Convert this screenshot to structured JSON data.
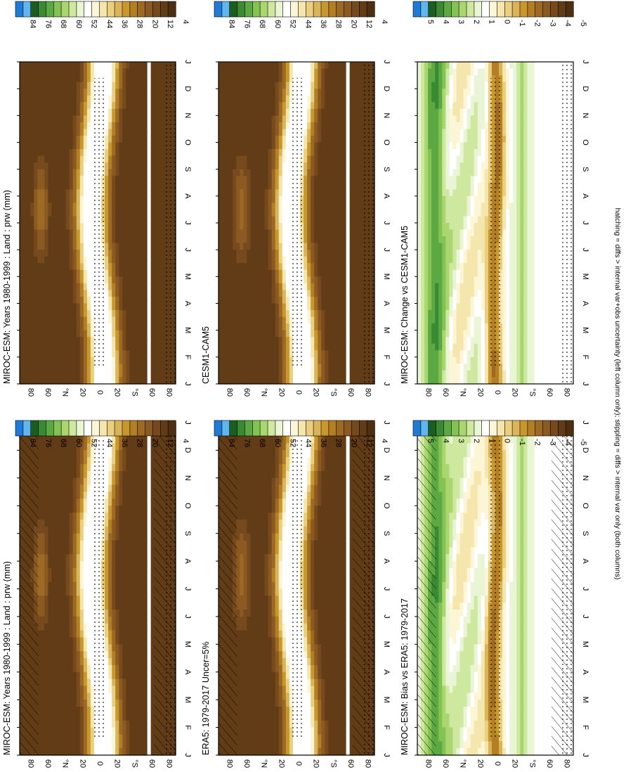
{
  "figure": {
    "footnote": "hatching = diffs > internal var+obs uncertainty (left column only); stippling = diffs > internal var only (both columns)"
  },
  "chart_data": [
    {
      "type": "heatmap",
      "panel": "top-left",
      "title": "MIROC-ESM: Years 1980-1999 : Land : prw (mm)",
      "months": [
        "J",
        "F",
        "M",
        "A",
        "M",
        "J",
        "J",
        "A",
        "S",
        "O",
        "N",
        "D",
        "J"
      ],
      "lat_ticks": [
        "80",
        "60",
        "°N",
        "20",
        "0",
        "20",
        "°S",
        "60",
        "80"
      ],
      "overlay": "hatching+stippling",
      "field": "absolute",
      "peak_lat": 64
    },
    {
      "type": "heatmap",
      "panel": "middle-left",
      "title": "ERA5: 1979-2017 Uncer=5%",
      "months": [
        "J",
        "F",
        "M",
        "A",
        "M",
        "J",
        "J",
        "A",
        "S",
        "O",
        "N",
        "D",
        "J"
      ],
      "lat_ticks": [
        "80",
        "60",
        "°N",
        "20",
        "0",
        "20",
        "°S",
        "60",
        "80"
      ],
      "overlay": "hatching+stippling",
      "field": "absolute",
      "peak_lat": 62
    },
    {
      "type": "heatmap",
      "panel": "bottom-left",
      "title": "MIROC-ESM: Bias vs ERA5: 1979-2017",
      "months": [
        "J",
        "F",
        "M",
        "A",
        "M",
        "J",
        "J",
        "A",
        "S",
        "O",
        "N",
        "D",
        "J"
      ],
      "lat_ticks": [
        "80",
        "60",
        "°N",
        "20",
        "0",
        "20",
        "°S",
        "60",
        "80"
      ],
      "overlay": "hatching+stippling",
      "field": "difference"
    },
    {
      "type": "heatmap",
      "panel": "top-right",
      "title": "MIROC-ESM: Years 1980-1999 : Land : prw (mm)",
      "months": [
        "J",
        "F",
        "M",
        "A",
        "M",
        "J",
        "J",
        "A",
        "S",
        "O",
        "N",
        "D",
        "J"
      ],
      "lat_ticks": [
        "80",
        "60",
        "°N",
        "20",
        "0",
        "20",
        "°S",
        "60",
        "80"
      ],
      "overlay": "stippling",
      "field": "absolute",
      "peak_lat": 64
    },
    {
      "type": "heatmap",
      "panel": "middle-right",
      "title": "CESM1-CAM5",
      "months": [
        "J",
        "F",
        "M",
        "A",
        "M",
        "J",
        "J",
        "A",
        "S",
        "O",
        "N",
        "D",
        "J"
      ],
      "lat_ticks": [
        "80",
        "60",
        "°N",
        "20",
        "0",
        "20",
        "°S",
        "60",
        "80"
      ],
      "overlay": "stippling",
      "field": "absolute",
      "peak_lat": 62
    },
    {
      "type": "heatmap",
      "panel": "bottom-right",
      "title": "MIROC-ESM: Change vs CESM1-CAM5",
      "months": [
        "J",
        "F",
        "M",
        "A",
        "M",
        "J",
        "J",
        "A",
        "S",
        "O",
        "N",
        "D",
        "J"
      ],
      "lat_ticks": [
        "80",
        "60",
        "°N",
        "20",
        "0",
        "20",
        "°S",
        "60",
        "80"
      ],
      "overlay": "stippling",
      "field": "difference"
    }
  ],
  "colorbars": {
    "absolute": {
      "labels": [
        "84",
        "76",
        "68",
        "60",
        "52",
        "44",
        "36",
        "28",
        "20",
        "12",
        "4"
      ],
      "colors": [
        "#1f7bd6",
        "#62b6ee",
        "#1b5e20",
        "#3a8a34",
        "#5ca843",
        "#84c253",
        "#a9d66e",
        "#cfe8a0",
        "#eaf5d6",
        "#ffffff",
        "#fdf6d6",
        "#f5e6ad",
        "#e9cf7e",
        "#d9b45a",
        "#c8982f",
        "#b47e24",
        "#9d6a23",
        "#8a5a22",
        "#764a1d",
        "#623c17",
        "#4e2e11"
      ]
    },
    "difference": {
      "labels": [
        "5",
        "4",
        "3",
        "2",
        "1",
        "0",
        "-1",
        "-2",
        "-3",
        "-4",
        "-5"
      ],
      "colors": [
        "#1f7bd6",
        "#62b6ee",
        "#1b5e20",
        "#3a8a34",
        "#5ca843",
        "#84c253",
        "#a9d66e",
        "#cfe8a0",
        "#eaf5d6",
        "#ffffff",
        "#fdf6d6",
        "#f5e6ad",
        "#e9cf7e",
        "#d9b45a",
        "#c8982f",
        "#b47e24",
        "#9d6a23",
        "#8a5a22",
        "#764a1d",
        "#623c17",
        "#4e2e11"
      ]
    }
  }
}
